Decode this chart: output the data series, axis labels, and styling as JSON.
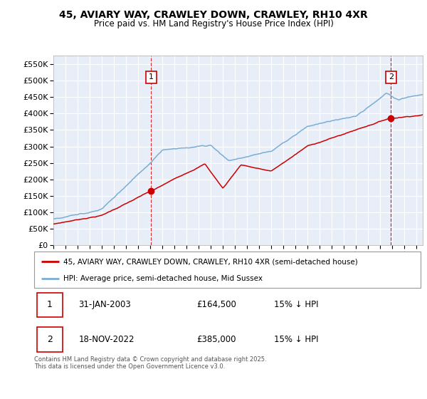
{
  "title": "45, AVIARY WAY, CRAWLEY DOWN, CRAWLEY, RH10 4XR",
  "subtitle": "Price paid vs. HM Land Registry's House Price Index (HPI)",
  "legend_label_red": "45, AVIARY WAY, CRAWLEY DOWN, CRAWLEY, RH10 4XR (semi-detached house)",
  "legend_label_blue": "HPI: Average price, semi-detached house, Mid Sussex",
  "footnote": "Contains HM Land Registry data © Crown copyright and database right 2025.\nThis data is licensed under the Open Government Licence v3.0.",
  "sale1_label": "1",
  "sale1_date": "31-JAN-2003",
  "sale1_price": "£164,500",
  "sale1_hpi": "15% ↓ HPI",
  "sale2_label": "2",
  "sale2_date": "18-NOV-2022",
  "sale2_price": "£385,000",
  "sale2_hpi": "15% ↓ HPI",
  "sale1_x": 2003.08,
  "sale1_y": 164500,
  "sale2_x": 2022.88,
  "sale2_y": 385000,
  "ylim": [
    0,
    575000
  ],
  "xlim": [
    1995.0,
    2025.5
  ],
  "plot_bg_color": "#e8eef8",
  "grid_color": "#ffffff",
  "red_color": "#cc0000",
  "blue_color": "#7aadd4",
  "vline_color": "#cc0000"
}
